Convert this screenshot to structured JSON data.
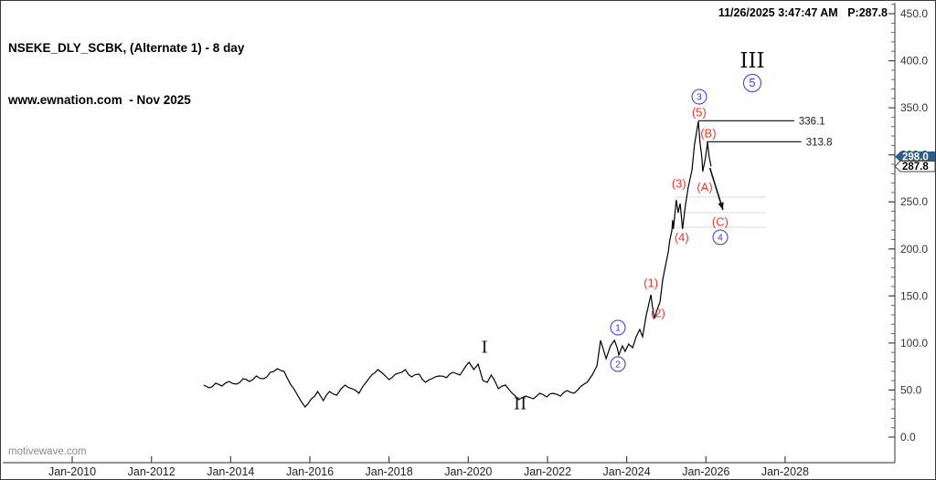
{
  "header": {
    "title": "NSEKE_DLY_SCBK, (Alternate 1) - 8 day",
    "subtitle": "www.ewnation.com  - Nov 2025",
    "timestamp": "11/26/2025 3:47:47 AM",
    "price_indicator": "P:287.8"
  },
  "watermark": "motivewave.com",
  "chart_data": {
    "type": "line",
    "title": "NSEKE_DLY_SCBK daily close with Elliott Wave count",
    "grid": "off",
    "line_color": "#000000",
    "x_axis": {
      "labels": [
        {
          "label": "Jan-2010",
          "year": 2010
        },
        {
          "label": "Jan-2012",
          "year": 2012
        },
        {
          "label": "Jan-2014",
          "year": 2014
        },
        {
          "label": "Jan-2016",
          "year": 2016
        },
        {
          "label": "Jan-2018",
          "year": 2018
        },
        {
          "label": "Jan-2020",
          "year": 2020
        },
        {
          "label": "Jan-2022",
          "year": 2022
        },
        {
          "label": "Jan-2024",
          "year": 2024
        },
        {
          "label": "Jan-2026",
          "year": 2026
        },
        {
          "label": "Jan-2028",
          "year": 2028
        }
      ],
      "range_years": [
        2008.25,
        2029.75
      ]
    },
    "y_axis": {
      "major_ticks": [
        0,
        50,
        100,
        150,
        200,
        250,
        300,
        350,
        400,
        450
      ],
      "minor_step": 10,
      "range": [
        0,
        463
      ],
      "label_format_suffix": ".0"
    },
    "series": [
      {
        "name": "NSEKE_DLY_SCBK",
        "points": [
          [
            2013.32,
            55.3
          ],
          [
            2013.46,
            52.4
          ],
          [
            2013.62,
            57.2
          ],
          [
            2013.78,
            54.3
          ],
          [
            2013.96,
            59.2
          ],
          [
            2014.15,
            56.3
          ],
          [
            2014.31,
            62.1
          ],
          [
            2014.47,
            59.2
          ],
          [
            2014.65,
            65.0
          ],
          [
            2014.84,
            62.1
          ],
          [
            2015.0,
            68.9
          ],
          [
            2015.18,
            72.7
          ],
          [
            2015.35,
            69.8
          ],
          [
            2015.51,
            56.3
          ],
          [
            2015.69,
            44.6
          ],
          [
            2015.88,
            32.0
          ],
          [
            2016.04,
            40.7
          ],
          [
            2016.2,
            48.5
          ],
          [
            2016.34,
            38.8
          ],
          [
            2016.5,
            48.5
          ],
          [
            2016.68,
            44.6
          ],
          [
            2016.89,
            55.3
          ],
          [
            2017.07,
            51.4
          ],
          [
            2017.24,
            46.6
          ],
          [
            2017.42,
            58.2
          ],
          [
            2017.56,
            66.0
          ],
          [
            2017.72,
            71.8
          ],
          [
            2017.86,
            66.9
          ],
          [
            2018.0,
            61.1
          ],
          [
            2018.16,
            66.9
          ],
          [
            2018.41,
            71.8
          ],
          [
            2018.57,
            64.0
          ],
          [
            2018.76,
            66.9
          ],
          [
            2018.92,
            58.2
          ],
          [
            2019.08,
            62.1
          ],
          [
            2019.26,
            65.0
          ],
          [
            2019.45,
            63.1
          ],
          [
            2019.61,
            68.9
          ],
          [
            2019.79,
            66.0
          ],
          [
            2020.02,
            79.5
          ],
          [
            2020.14,
            71.8
          ],
          [
            2020.25,
            77.6
          ],
          [
            2020.37,
            60.1
          ],
          [
            2020.48,
            58.2
          ],
          [
            2020.58,
            66.0
          ],
          [
            2020.76,
            51.4
          ],
          [
            2020.94,
            55.3
          ],
          [
            2021.11,
            46.6
          ],
          [
            2021.27,
            39.8
          ],
          [
            2021.45,
            43.6
          ],
          [
            2021.64,
            40.7
          ],
          [
            2021.8,
            46.6
          ],
          [
            2021.98,
            42.7
          ],
          [
            2022.14,
            46.6
          ],
          [
            2022.33,
            43.6
          ],
          [
            2022.49,
            49.5
          ],
          [
            2022.67,
            46.6
          ],
          [
            2022.83,
            53.3
          ],
          [
            2023.0,
            58.2
          ],
          [
            2023.13,
            66.0
          ],
          [
            2023.25,
            75.6
          ],
          [
            2023.34,
            102.8
          ],
          [
            2023.41,
            93.1
          ],
          [
            2023.48,
            83.4
          ],
          [
            2023.59,
            97.0
          ],
          [
            2023.69,
            102.8
          ],
          [
            2023.76,
            95.0
          ],
          [
            2023.8,
            87.3
          ],
          [
            2023.89,
            97.0
          ],
          [
            2023.96,
            91.2
          ],
          [
            2024.05,
            98.9
          ],
          [
            2024.15,
            95.0
          ],
          [
            2024.24,
            106.7
          ],
          [
            2024.33,
            114.4
          ],
          [
            2024.4,
            106.7
          ],
          [
            2024.49,
            129.0
          ],
          [
            2024.61,
            151.3
          ],
          [
            2024.65,
            138.7
          ],
          [
            2024.7,
            126.1
          ],
          [
            2024.77,
            135.8
          ],
          [
            2024.84,
            143.5
          ],
          [
            2024.91,
            167.8
          ],
          [
            2024.98,
            182.3
          ],
          [
            2025.05,
            196.9
          ],
          [
            2025.09,
            209.5
          ],
          [
            2025.14,
            219.2
          ],
          [
            2025.16,
            230.8
          ],
          [
            2025.18,
            221.1
          ],
          [
            2025.23,
            242.5
          ],
          [
            2025.25,
            252.2
          ],
          [
            2025.3,
            238.6
          ],
          [
            2025.35,
            248.3
          ],
          [
            2025.41,
            221.1
          ],
          [
            2025.48,
            245.4
          ],
          [
            2025.55,
            264.8
          ],
          [
            2025.65,
            284.2
          ],
          [
            2025.71,
            310.3
          ],
          [
            2025.81,
            335.6
          ],
          [
            2025.85,
            313.3
          ],
          [
            2025.9,
            296.8
          ],
          [
            2025.92,
            282.2
          ],
          [
            2025.99,
            296.8
          ],
          [
            2026.04,
            313.3
          ],
          [
            2026.08,
            298.7
          ],
          [
            2026.13,
            287.8
          ]
        ]
      }
    ],
    "level_lines": [
      {
        "label": "336.1",
        "price": 336.1,
        "year_from": 2025.81,
        "year_to": 2028.23,
        "color": "#222222"
      },
      {
        "label": "313.8",
        "price": 313.8,
        "year_from": 2026.02,
        "year_to": 2028.41,
        "color": "#222222"
      }
    ],
    "target_lines": [
      {
        "price": 255.1,
        "year_from": 2025.23,
        "year_to": 2027.51,
        "color": "#d9d9d9"
      },
      {
        "price": 238.6,
        "year_from": 2025.23,
        "year_to": 2027.51,
        "color": "#d9d9d9"
      },
      {
        "price": 223.1,
        "year_from": 2025.23,
        "year_to": 2027.51,
        "color": "#d9d9d9"
      }
    ],
    "arrow": {
      "from": [
        2026.1,
        286.1
      ],
      "to": [
        2026.43,
        241.5
      ],
      "color": "#111111"
    },
    "price_tags": [
      {
        "value": "298.0",
        "price": 298.0,
        "style": "blue",
        "bg": "#2e5c8a",
        "fg": "#ffffff"
      },
      {
        "value": "287.8",
        "price": 287.8,
        "style": "white",
        "bg": "#ffffff",
        "fg": "#000000"
      }
    ],
    "annotations": [
      {
        "text": "(1)",
        "type": "red",
        "year": 2024.61,
        "price": 163.9
      },
      {
        "text": "(2)",
        "type": "red",
        "year": 2024.79,
        "price": 131.9
      },
      {
        "text": "(3)",
        "type": "red",
        "year": 2025.32,
        "price": 269.6
      },
      {
        "text": "(4)",
        "type": "red",
        "year": 2025.39,
        "price": 212.4
      },
      {
        "text": "(5)",
        "type": "red",
        "year": 2025.83,
        "price": 345.3
      },
      {
        "text": "(A)",
        "type": "red",
        "year": 2025.97,
        "price": 265.7
      },
      {
        "text": "(B)",
        "type": "red",
        "year": 2026.06,
        "price": 323.0
      },
      {
        "text": "(C)",
        "type": "red",
        "year": 2026.36,
        "price": 228.9
      },
      {
        "text": "1",
        "type": "blue-circle",
        "year": 2023.78,
        "price": 116.4
      },
      {
        "text": "2",
        "type": "blue-circle",
        "year": 2023.78,
        "price": 77.6
      },
      {
        "text": "3",
        "type": "blue-circle",
        "year": 2025.83,
        "price": 361.7
      },
      {
        "text": "4",
        "type": "blue-circle",
        "year": 2026.36,
        "price": 212.4
      },
      {
        "text": "5",
        "type": "blue-circle-large",
        "year": 2027.17,
        "price": 376.3
      },
      {
        "text": "I",
        "type": "roman",
        "year": 2020.41,
        "price": 95.0
      },
      {
        "text": "II",
        "type": "roman",
        "year": 2021.31,
        "price": 34.9
      },
      {
        "text": "III",
        "type": "roman-large",
        "year": 2027.17,
        "price": 399.6
      }
    ],
    "colors": {
      "wave_red": "#ee3428",
      "wave_blue": "#3535e0",
      "roman_black": "#101010",
      "axis_line": "#555555"
    }
  }
}
